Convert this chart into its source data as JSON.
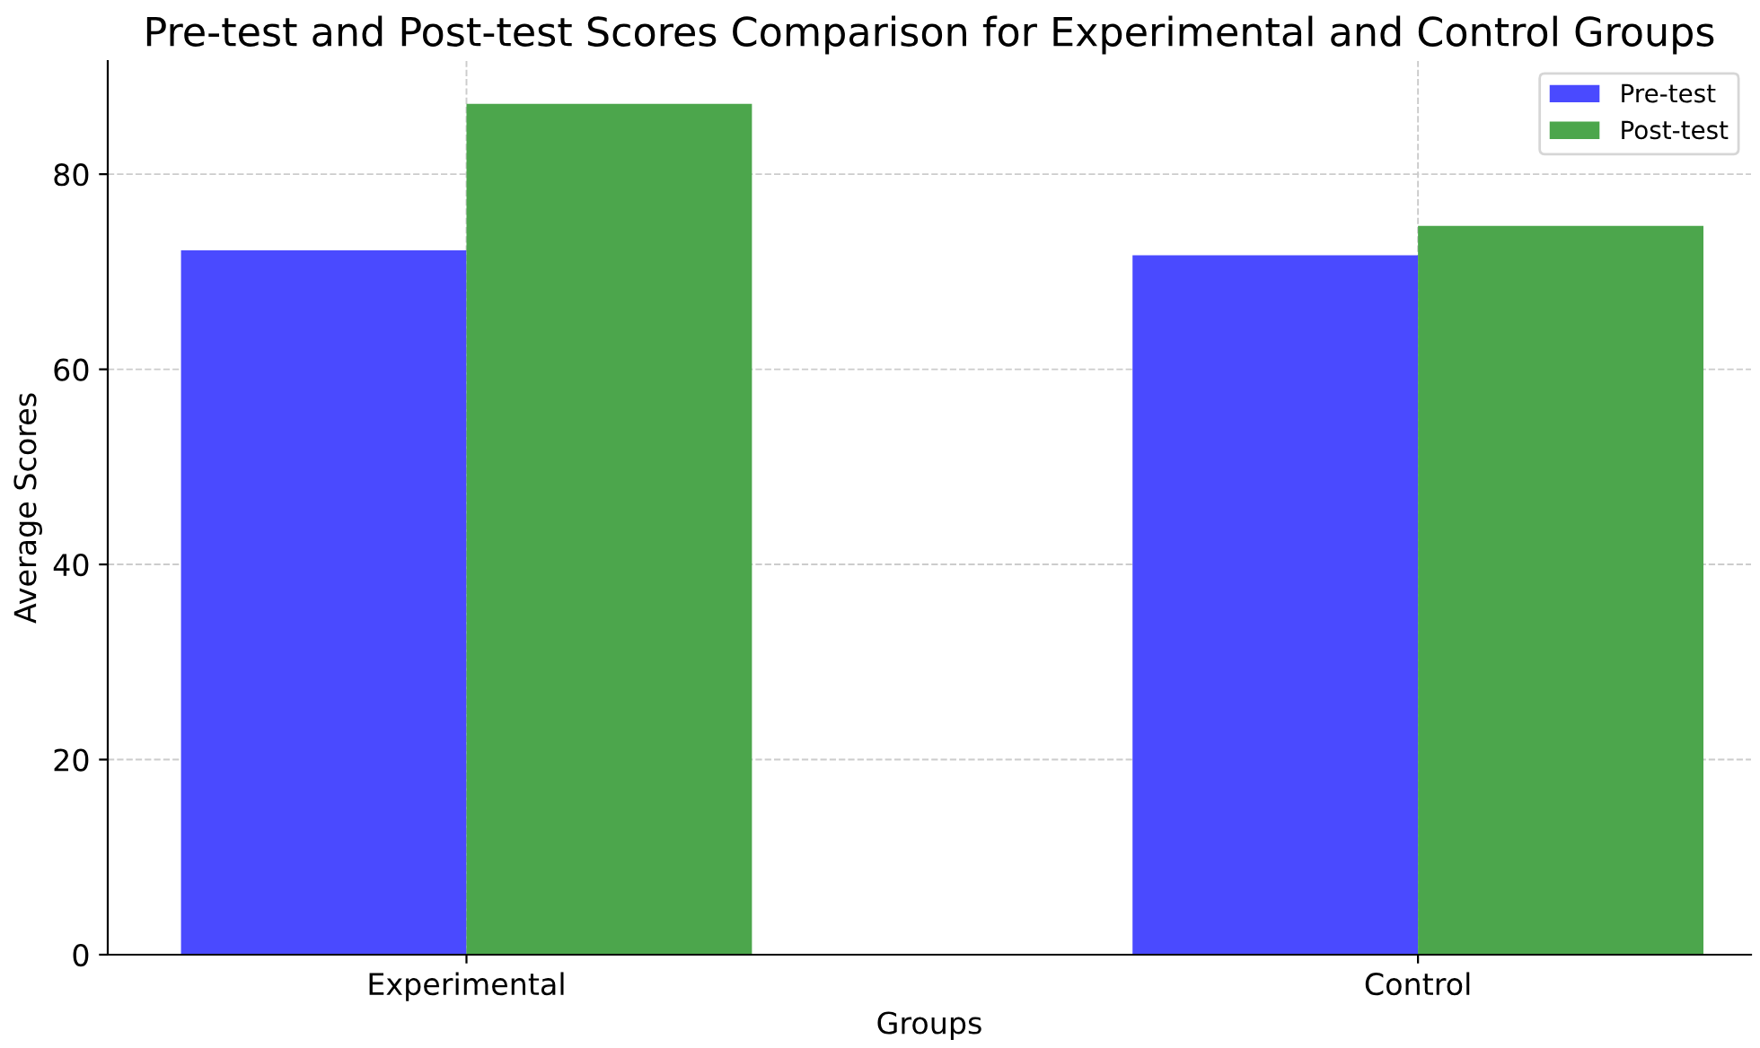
{
  "chart_data": {
    "type": "bar",
    "title": "Pre-test and Post-test Scores Comparison for Experimental and Control Groups",
    "xlabel": "Groups",
    "ylabel": "Average Scores",
    "categories": [
      "Experimental",
      "Control"
    ],
    "series": [
      {
        "name": "Pre-test",
        "color": "#4a4aff",
        "values": [
          72.2,
          71.7
        ]
      },
      {
        "name": "Post-test",
        "color": "#4ca64c",
        "values": [
          87.2,
          74.7
        ]
      }
    ],
    "ylim": [
      0,
      91.6
    ],
    "yticks": [
      0,
      20,
      40,
      60,
      80
    ],
    "grid": true,
    "legend": "top right"
  }
}
